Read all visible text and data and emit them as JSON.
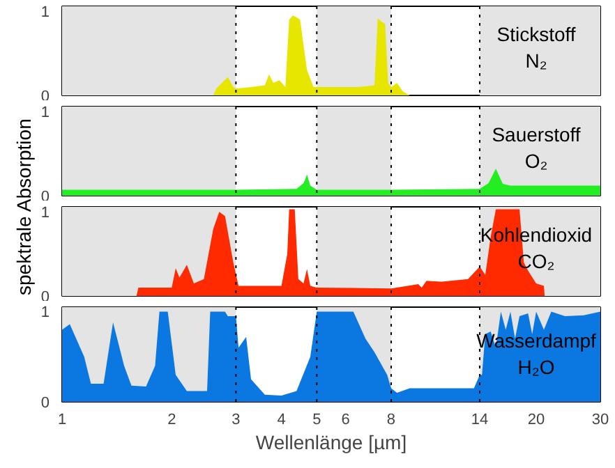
{
  "chart_data": [
    {
      "type": "area",
      "ylabel": "spektrale Absorption",
      "annotations": [
        "Stickstoff",
        "N₂"
      ],
      "xlim": [
        1,
        30
      ],
      "ylim": [
        0,
        1.06
      ],
      "yticks": [
        0,
        1
      ],
      "log": "x",
      "grid": false,
      "tick_labels": "y",
      "series": [
        {
          "color": "#e6e600",
          "x": [
            2.6,
            2.65,
            2.85,
            2.95,
            3.0,
            3.3,
            3.6,
            3.7,
            3.8,
            3.95,
            4.1,
            4.2,
            4.3,
            4.4,
            4.5,
            4.7,
            4.9,
            5.0,
            6.5,
            7.2,
            7.35,
            7.5,
            7.7,
            7.85,
            8.0,
            8.3,
            8.6,
            9.0
          ],
          "values": [
            0,
            0.08,
            0.22,
            0.1,
            0.08,
            0.1,
            0.12,
            0.25,
            0.15,
            0.18,
            0.1,
            0.9,
            0.95,
            0.93,
            0.9,
            0.3,
            0.1,
            0.1,
            0.1,
            0.12,
            0.92,
            0.88,
            0.85,
            0.15,
            0.1,
            0.15,
            0.05,
            0
          ]
        }
      ],
      "bands": [
        {
          "axis": "x",
          "from": 1,
          "to": 3,
          "color": "#e4e4e4"
        },
        {
          "axis": "x",
          "from": 5,
          "to": 8,
          "color": "#e4e4e4"
        },
        {
          "axis": "x",
          "from": 14,
          "to": 30,
          "color": "#e4e4e4"
        }
      ],
      "ref_lines": [
        {
          "axis": "x",
          "value": 3,
          "color": "#000000",
          "line_style": "dotted"
        },
        {
          "axis": "x",
          "value": 5,
          "color": "#000000",
          "line_style": "dotted"
        },
        {
          "axis": "x",
          "value": 8,
          "color": "#000000",
          "line_style": "dotted"
        },
        {
          "axis": "x",
          "value": 14,
          "color": "#000000",
          "line_style": "dotted"
        }
      ]
    },
    {
      "type": "area",
      "annotations": [
        "Sauerstoff",
        "O₂"
      ],
      "xlim": [
        1,
        30
      ],
      "ylim": [
        0,
        1.06
      ],
      "yticks": [
        0,
        1
      ],
      "log": "x",
      "grid": false,
      "tick_labels": "y",
      "series": [
        {
          "color": "#22ee22",
          "x": [
            1,
            3,
            4.4,
            4.6,
            4.7,
            4.8,
            5.0,
            8,
            14,
            14.8,
            15.5,
            16.2,
            17,
            30
          ],
          "values": [
            0.07,
            0.07,
            0.08,
            0.15,
            0.25,
            0.12,
            0.07,
            0.07,
            0.08,
            0.15,
            0.32,
            0.14,
            0.12,
            0.12
          ]
        }
      ],
      "bands": [
        {
          "axis": "x",
          "from": 1,
          "to": 3,
          "color": "#e4e4e4"
        },
        {
          "axis": "x",
          "from": 5,
          "to": 8,
          "color": "#e4e4e4"
        },
        {
          "axis": "x",
          "from": 14,
          "to": 30,
          "color": "#e4e4e4"
        }
      ],
      "ref_lines": [
        {
          "axis": "x",
          "value": 3,
          "color": "#000000",
          "line_style": "dotted"
        },
        {
          "axis": "x",
          "value": 5,
          "color": "#000000",
          "line_style": "dotted"
        },
        {
          "axis": "x",
          "value": 8,
          "color": "#000000",
          "line_style": "dotted"
        },
        {
          "axis": "x",
          "value": 14,
          "color": "#000000",
          "line_style": "dotted"
        }
      ]
    },
    {
      "type": "area",
      "annotations": [
        "Kohlendioxid",
        "CO₂"
      ],
      "xlim": [
        1,
        30
      ],
      "ylim": [
        0,
        1.06
      ],
      "yticks": [
        0,
        1
      ],
      "log": "x",
      "grid": false,
      "tick_labels": "y",
      "series": [
        {
          "color": "#ff2a00",
          "x": [
            1.6,
            1.62,
            2.0,
            2.05,
            2.1,
            2.2,
            2.3,
            2.45,
            2.6,
            2.7,
            2.8,
            2.95,
            3.05,
            4.0,
            4.15,
            4.2,
            4.35,
            4.45,
            4.6,
            4.7,
            4.8,
            5.0,
            8.0,
            9.5,
            9.7,
            10,
            11,
            13,
            14,
            14.5,
            15,
            15.5,
            18,
            18.5,
            19,
            20,
            21,
            21.1
          ],
          "values": [
            0,
            0.1,
            0.1,
            0.33,
            0.22,
            0.37,
            0.15,
            0.2,
            0.8,
            1.0,
            0.95,
            0.4,
            0.12,
            0.12,
            0.5,
            1.03,
            1.03,
            0.2,
            0.15,
            0.32,
            0.12,
            0.1,
            0.09,
            0.14,
            0.1,
            0.18,
            0.17,
            0.2,
            0.35,
            0.25,
            0.7,
            1.03,
            1.03,
            0.4,
            0.3,
            0.15,
            0.12,
            0
          ]
        }
      ],
      "bands": [
        {
          "axis": "x",
          "from": 1,
          "to": 3,
          "color": "#e4e4e4"
        },
        {
          "axis": "x",
          "from": 5,
          "to": 8,
          "color": "#e4e4e4"
        },
        {
          "axis": "x",
          "from": 14,
          "to": 30,
          "color": "#e4e4e4"
        }
      ],
      "ref_lines": [
        {
          "axis": "x",
          "value": 3,
          "color": "#000000",
          "line_style": "dotted"
        },
        {
          "axis": "x",
          "value": 5,
          "color": "#000000",
          "line_style": "dotted"
        },
        {
          "axis": "x",
          "value": 8,
          "color": "#000000",
          "line_style": "dotted"
        },
        {
          "axis": "x",
          "value": 14,
          "color": "#000000",
          "line_style": "dotted"
        }
      ]
    },
    {
      "type": "area",
      "xlabel": "Wellenlänge [µm]",
      "annotations": [
        "Wasserdampf",
        "H₂O"
      ],
      "xlim": [
        1,
        30
      ],
      "ylim": [
        0,
        1.05
      ],
      "yticks": [
        0,
        1
      ],
      "log": "x",
      "grid": false,
      "xticks": [
        1,
        2,
        3,
        4,
        5,
        6,
        8,
        14,
        20,
        30
      ],
      "series": [
        {
          "color": "#0a78e0",
          "x": [
            1.0,
            1.05,
            1.15,
            1.2,
            1.3,
            1.38,
            1.48,
            1.55,
            1.7,
            1.8,
            1.85,
            1.95,
            2.05,
            2.2,
            2.5,
            2.55,
            2.8,
            2.85,
            3.0,
            3.05,
            3.2,
            3.3,
            3.6,
            4.0,
            4.4,
            4.8,
            5.0,
            6.3,
            6.8,
            7.2,
            7.8,
            8.0,
            8.3,
            9.0,
            13.5,
            14.0,
            14.2,
            14.5,
            15,
            15.5,
            16,
            16.5,
            17,
            17.5,
            18,
            19,
            19.5,
            20,
            21,
            22,
            24,
            27,
            30
          ],
          "values": [
            0.8,
            0.86,
            0.5,
            0.2,
            0.2,
            0.88,
            0.4,
            0.18,
            0.17,
            0.4,
            1.0,
            1.0,
            0.3,
            0.12,
            0.12,
            1.0,
            1.0,
            0.95,
            0.95,
            0.6,
            0.72,
            0.25,
            0.08,
            0.07,
            0.12,
            0.5,
            1.0,
            1.0,
            0.7,
            0.55,
            0.3,
            0.15,
            0.1,
            0.15,
            0.15,
            0.3,
            0.3,
            0.75,
            0.78,
            0.6,
            1.0,
            0.8,
            1.0,
            0.7,
            0.95,
            0.98,
            0.75,
            1.0,
            0.8,
            1.0,
            0.95,
            0.96,
            1.0
          ]
        }
      ],
      "bands": [
        {
          "axis": "x",
          "from": 1,
          "to": 3,
          "color": "#e4e4e4"
        },
        {
          "axis": "x",
          "from": 5,
          "to": 8,
          "color": "#e4e4e4"
        },
        {
          "axis": "x",
          "from": 14,
          "to": 30,
          "color": "#e4e4e4"
        }
      ],
      "ref_lines": [
        {
          "axis": "x",
          "value": 3,
          "color": "#000000",
          "line_style": "dotted"
        },
        {
          "axis": "x",
          "value": 5,
          "color": "#000000",
          "line_style": "dotted"
        },
        {
          "axis": "x",
          "value": 8,
          "color": "#000000",
          "line_style": "dotted"
        },
        {
          "axis": "x",
          "value": 14,
          "color": "#000000",
          "line_style": "dotted"
        }
      ]
    }
  ]
}
